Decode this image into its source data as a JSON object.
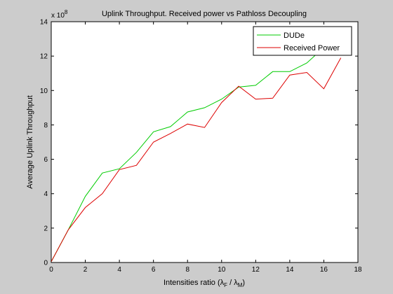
{
  "chart_data": {
    "type": "line",
    "title": "Uplink Throughput. Received power vs Pathloss Decoupling",
    "xlabel": "Intensities ratio (λ",
    "xlabel_sub1": "F",
    "xlabel_mid": " / λ",
    "xlabel_sub2": "M",
    "xlabel_end": ")",
    "ylabel": "Average Uplink Throughput",
    "y_multiplier": "x 10",
    "y_multiplier_exp": "8",
    "xlim": [
      0,
      18
    ],
    "ylim": [
      0,
      14
    ],
    "xticks": [
      "0",
      "2",
      "4",
      "6",
      "8",
      "10",
      "12",
      "14",
      "16",
      "18"
    ],
    "yticks": [
      "0",
      "2",
      "4",
      "6",
      "8",
      "10",
      "12",
      "14"
    ],
    "grid": false,
    "legend_position": "top-right",
    "series": [
      {
        "name": "DUDe",
        "color": "#00cc00",
        "x": [
          0,
          1,
          2,
          3,
          4,
          5,
          6,
          7,
          8,
          9,
          10,
          11,
          12,
          13,
          14,
          15,
          16,
          17
        ],
        "y": [
          0.05,
          1.9,
          3.85,
          5.2,
          5.45,
          6.4,
          7.6,
          7.9,
          8.75,
          9.0,
          9.5,
          10.2,
          10.3,
          11.1,
          11.1,
          11.6,
          12.5,
          13.2
        ]
      },
      {
        "name": "Received Power",
        "color": "#dd0000",
        "x": [
          0,
          1,
          2,
          3,
          4,
          5,
          6,
          7,
          8,
          9,
          10,
          11,
          12,
          13,
          14,
          15,
          16,
          17
        ],
        "y": [
          0.05,
          1.9,
          3.2,
          4.0,
          5.4,
          5.65,
          7.0,
          7.5,
          8.05,
          7.85,
          9.3,
          10.25,
          9.5,
          9.55,
          10.9,
          11.05,
          10.1,
          11.9
        ]
      }
    ]
  }
}
